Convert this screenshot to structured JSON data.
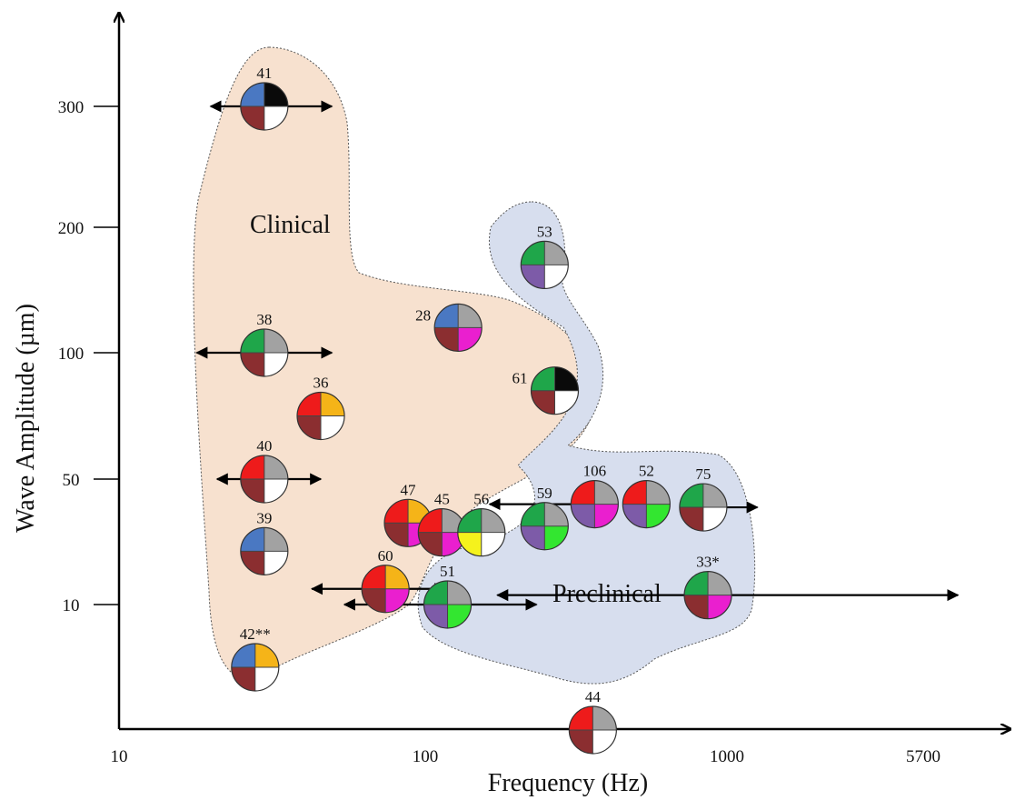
{
  "chart_data": {
    "type": "scatter",
    "xlabel": "Frequency (Hz)",
    "ylabel": "Wave Amplitude (µm)",
    "x_scale": "log",
    "y_scale": "categorical-spaced",
    "x_ticks": [
      "10",
      "100",
      "1000",
      "5700"
    ],
    "y_ticks": [
      "10",
      "50",
      "100",
      "200",
      "300"
    ],
    "regions": [
      {
        "label": "Clinical",
        "color": "#f7e1cf"
      },
      {
        "label": "Preclinical",
        "color": "#d7deee"
      }
    ],
    "quadrant_colors": {
      "blue": "#4a78c2",
      "black": "#0a0a0a",
      "darkred": "#8b2e30",
      "white": "#ffffff",
      "green": "#1fa64a",
      "gray": "#a2a2a2",
      "red": "#ee1b1b",
      "gold": "#f5b418",
      "purple": "#7d5ba8",
      "lime": "#33e630",
      "magenta": "#ea1fcf",
      "yellow": "#f5f21c"
    },
    "points": [
      {
        "label": "41",
        "freq": 30,
        "amp": 300,
        "range": [
          20,
          50
        ],
        "quadrants": [
          "blue",
          "black",
          "darkred",
          "white"
        ]
      },
      {
        "label": "38",
        "freq": 30,
        "amp": 100,
        "range": [
          18,
          50
        ],
        "quadrants": [
          "green",
          "gray",
          "darkred",
          "white"
        ]
      },
      {
        "label": "36",
        "freq": 46,
        "amp": 75,
        "quadrants": [
          "red",
          "gold",
          "darkred",
          "white"
        ]
      },
      {
        "label": "40",
        "freq": 30,
        "amp": 50,
        "range": [
          21,
          46
        ],
        "quadrants": [
          "red",
          "gray",
          "darkred",
          "white"
        ]
      },
      {
        "label": "39",
        "freq": 30,
        "amp": 27,
        "quadrants": [
          "blue",
          "gray",
          "darkred",
          "white"
        ]
      },
      {
        "label": "42**",
        "freq": 28,
        "amp": 5,
        "quadrants": [
          "blue",
          "gold",
          "darkred",
          "white"
        ]
      },
      {
        "label": "28",
        "freq": 130,
        "amp": 120,
        "quadrants": [
          "blue",
          "gray",
          "darkred",
          "magenta"
        ]
      },
      {
        "label": "53",
        "freq": 250,
        "amp": 170,
        "quadrants": [
          "green",
          "gray",
          "purple",
          "white"
        ]
      },
      {
        "label": "61",
        "freq": 270,
        "amp": 85,
        "quadrants": [
          "green",
          "black",
          "darkred",
          "white"
        ]
      },
      {
        "label": "47",
        "freq": 89,
        "amp": 36,
        "quadrants": [
          "red",
          "gold",
          "darkred",
          "magenta"
        ]
      },
      {
        "label": "45",
        "freq": 115,
        "amp": 33,
        "quadrants": [
          "red",
          "gray",
          "darkred",
          "magenta"
        ]
      },
      {
        "label": "56",
        "freq": 155,
        "amp": 33,
        "range": [
          125,
          165
        ],
        "quadrants": [
          "green",
          "gray",
          "yellow",
          "white"
        ]
      },
      {
        "label": "59",
        "freq": 250,
        "amp": 35,
        "quadrants": [
          "green",
          "gray",
          "purple",
          "lime"
        ]
      },
      {
        "label": "106",
        "freq": 365,
        "amp": 42,
        "range": [
          165,
          375
        ],
        "quadrants": [
          "red",
          "gray",
          "purple",
          "magenta"
        ]
      },
      {
        "label": "52",
        "freq": 540,
        "amp": 42,
        "quadrants": [
          "red",
          "gray",
          "purple",
          "lime"
        ]
      },
      {
        "label": "75",
        "freq": 830,
        "amp": 41,
        "range": [
          770,
          1250
        ],
        "quadrants": [
          "green",
          "gray",
          "darkred",
          "white"
        ]
      },
      {
        "label": "33*",
        "freq": 860,
        "amp": 13,
        "range": [
          175,
          5700
        ],
        "quadrants": [
          "green",
          "gray",
          "darkred",
          "magenta"
        ]
      },
      {
        "label": "60",
        "freq": 75,
        "amp": 15,
        "range": [
          43,
          118
        ],
        "quadrants": [
          "red",
          "gold",
          "darkred",
          "magenta"
        ]
      },
      {
        "label": "51",
        "freq": 120,
        "amp": 10,
        "range": [
          55,
          235
        ],
        "quadrants": [
          "green",
          "gray",
          "purple",
          "lime"
        ]
      },
      {
        "label": "44",
        "freq": 360,
        "amp": 0,
        "quadrants": [
          "red",
          "gray",
          "darkred",
          "white"
        ]
      }
    ]
  }
}
